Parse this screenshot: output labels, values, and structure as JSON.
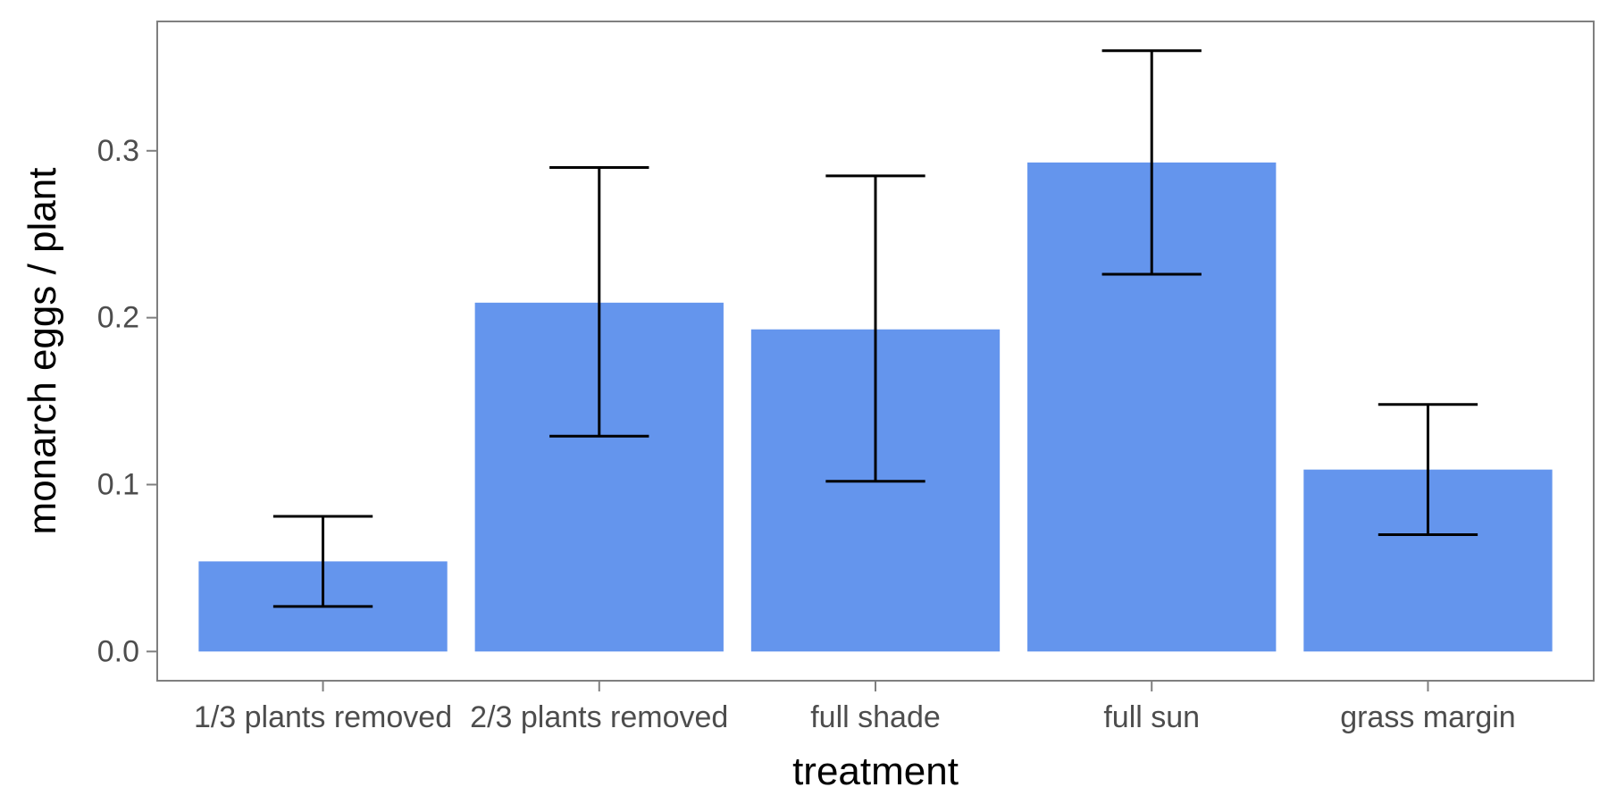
{
  "chart_data": {
    "type": "bar",
    "title": "",
    "xlabel": "treatment",
    "ylabel": "monarch eggs / plant",
    "categories": [
      "1/3 plants removed",
      "2/3 plants removed",
      "full shade",
      "full sun",
      "grass margin"
    ],
    "values": [
      0.054,
      0.209,
      0.193,
      0.293,
      0.109
    ],
    "error_lower": [
      0.027,
      0.129,
      0.102,
      0.226,
      0.07
    ],
    "error_upper": [
      0.081,
      0.29,
      0.285,
      0.36,
      0.148
    ],
    "ylim": [
      -0.0175,
      0.3775
    ],
    "yticks": [
      0.0,
      0.1,
      0.2,
      0.3
    ],
    "ytick_labels": [
      "0.0",
      "0.1",
      "0.2",
      "0.3"
    ],
    "grid": false,
    "legend": "none",
    "bar_color": "#6495ED",
    "errorbar_color": "#000000",
    "panel_border_color": "#7f7f7f",
    "tick_label_color": "#4d4d4d"
  }
}
